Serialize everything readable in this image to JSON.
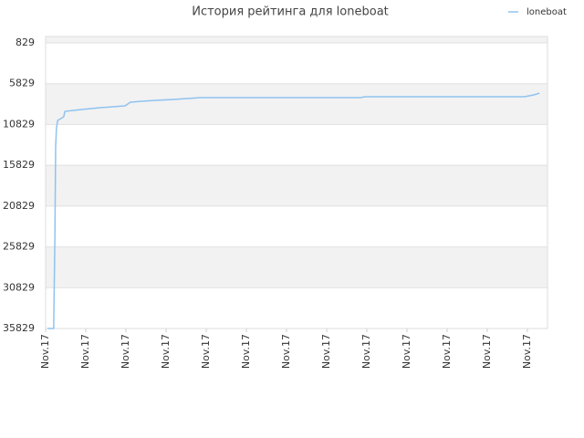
{
  "chart_data": {
    "type": "line",
    "title": "История рейтинга для loneboat",
    "x": [
      0.05,
      0.2,
      0.23,
      0.25,
      0.27,
      0.3,
      0.45,
      0.48,
      0.9,
      1.36,
      1.98,
      2.11,
      2.39,
      2.73,
      3.18,
      3.52,
      3.86,
      7.84,
      7.95,
      11.93,
      12.16,
      12.3
    ],
    "series": [
      {
        "name": "loneboat",
        "color": "#8fc3ef",
        "values": [
          35829,
          35829,
          24990,
          13470,
          11230,
          10337,
          9890,
          9219,
          8995,
          8771,
          8548,
          8100,
          7988,
          7877,
          7765,
          7653,
          7541,
          7541,
          7429,
          7429,
          7205,
          6982
        ]
      }
    ],
    "xlim": [
      0,
      12.5
    ],
    "xticks": [
      {
        "value": 0,
        "label": "Nov.17"
      },
      {
        "value": 1,
        "label": "Nov.17"
      },
      {
        "value": 2,
        "label": "Nov.17"
      },
      {
        "value": 3,
        "label": "Nov.17"
      },
      {
        "value": 4,
        "label": "Nov.17"
      },
      {
        "value": 5,
        "label": "Nov.17"
      },
      {
        "value": 6,
        "label": "Nov.17"
      },
      {
        "value": 7,
        "label": "Nov.17"
      },
      {
        "value": 8,
        "label": "Nov.17"
      },
      {
        "value": 9,
        "label": "Nov.17"
      },
      {
        "value": 10,
        "label": "Nov.17"
      },
      {
        "value": 11,
        "label": "Nov.17"
      },
      {
        "value": 12,
        "label": "Nov.17"
      }
    ],
    "ylim": [
      35829,
      46
    ],
    "yticks": [
      829,
      5829,
      10829,
      15829,
      20829,
      25829,
      30829,
      35829
    ],
    "grid": true,
    "legend": "top-right"
  }
}
